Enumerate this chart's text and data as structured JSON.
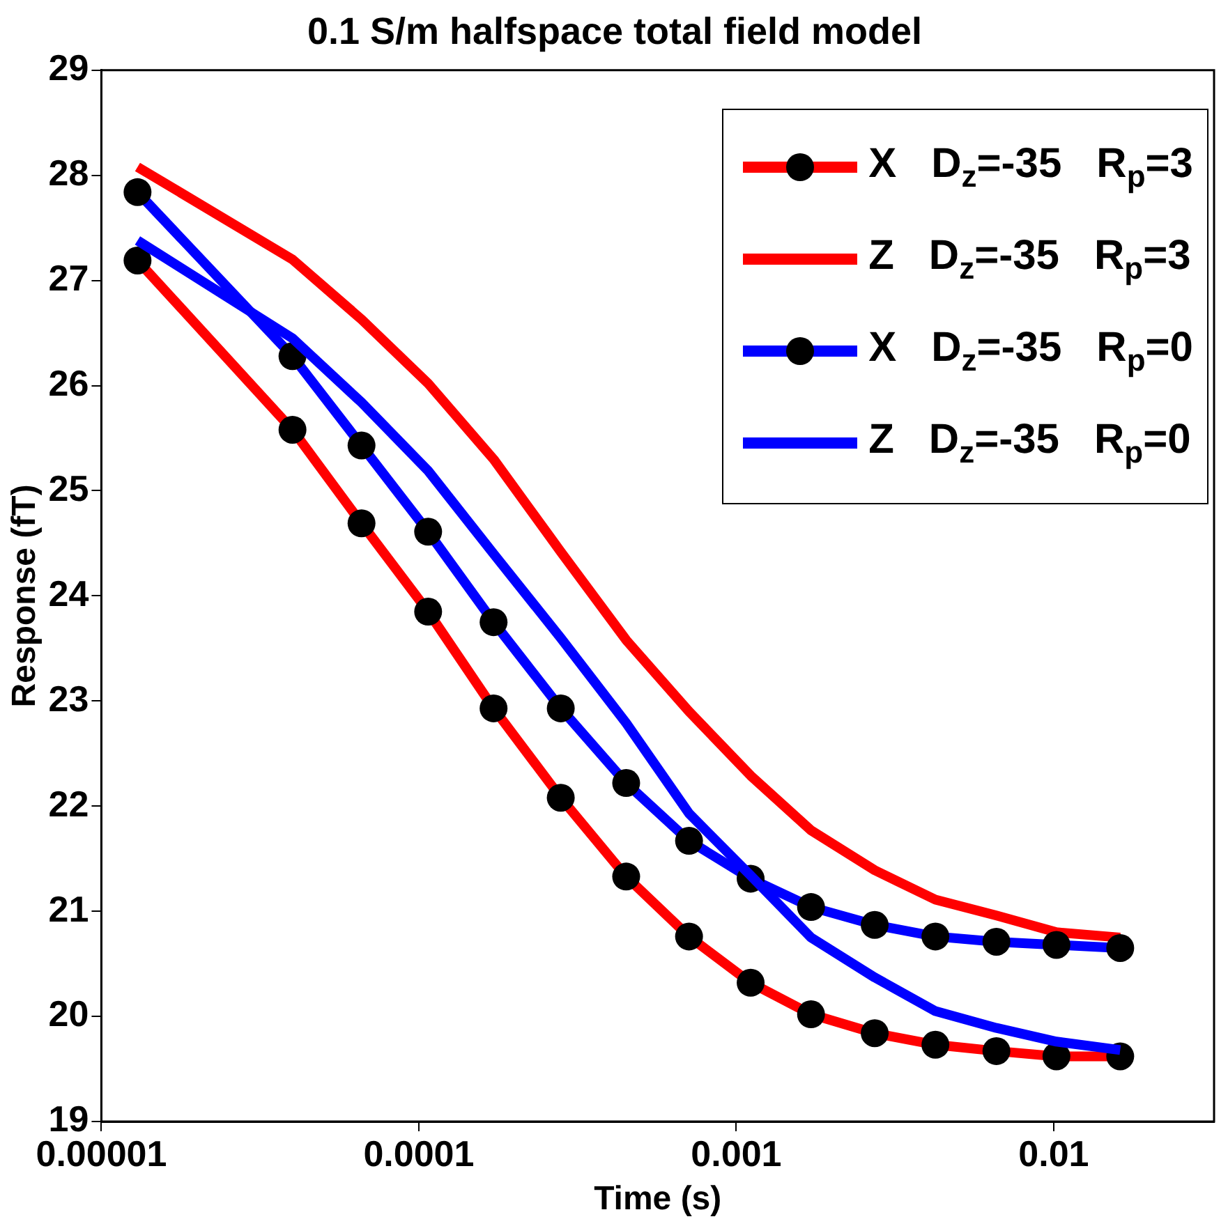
{
  "chart_data": {
    "type": "line",
    "title": "0.1 S/m halfspace total field model",
    "xlabel": "Time (s)",
    "ylabel": "Response (fT)",
    "x": [
      1.3e-05,
      4e-05,
      6.6e-05,
      0.000107,
      0.000172,
      0.00028,
      0.00045,
      0.00071,
      0.00111,
      0.00172,
      0.00273,
      0.00424,
      0.0066,
      0.0102,
      0.0162
    ],
    "log": "x",
    "xlim": [
      1e-05,
      0.032
    ],
    "xticks": [
      {
        "value": 1e-05,
        "label": "0.00001"
      },
      {
        "value": 0.0001,
        "label": "0.0001"
      },
      {
        "value": 0.001,
        "label": "0.001"
      },
      {
        "value": 0.01,
        "label": "0.01"
      }
    ],
    "ylim": [
      19,
      29
    ],
    "yticks": [
      19,
      20,
      21,
      22,
      23,
      24,
      25,
      26,
      27,
      28,
      29
    ],
    "grid": false,
    "legend": "top right",
    "line_style": "solid",
    "series": [
      {
        "name": "X   D$_{z}$=-35   R$_{p}$=3",
        "color": "#ff0000",
        "marker": "circle",
        "values": [
          27.19,
          25.58,
          24.69,
          23.85,
          22.93,
          22.08,
          21.33,
          20.76,
          20.32,
          20.02,
          19.84,
          19.73,
          19.67,
          19.62,
          19.62
        ]
      },
      {
        "name": "Z   D$_{z}$=-35   R$_{p}$=3",
        "color": "#ff0000",
        "marker": "none",
        "values": [
          28.08,
          27.2,
          26.63,
          26.02,
          25.3,
          24.42,
          23.58,
          22.9,
          22.29,
          21.77,
          21.39,
          21.11,
          20.96,
          20.8,
          20.75
        ]
      },
      {
        "name": "X   D$_{z}$=-35   R$_{p}$=0",
        "color": "#0000ff",
        "marker": "circle",
        "values": [
          27.84,
          26.28,
          25.43,
          24.61,
          23.75,
          22.93,
          22.22,
          21.67,
          21.31,
          21.04,
          20.87,
          20.76,
          20.71,
          20.68,
          20.65
        ]
      },
      {
        "name": "Z   D$_{z}$=-35   R$_{p}$=0",
        "color": "#0000ff",
        "marker": "none",
        "values": [
          27.38,
          26.45,
          25.84,
          25.19,
          24.4,
          23.6,
          22.79,
          21.93,
          21.34,
          20.75,
          20.37,
          20.05,
          19.89,
          19.76,
          19.68
        ]
      }
    ]
  }
}
